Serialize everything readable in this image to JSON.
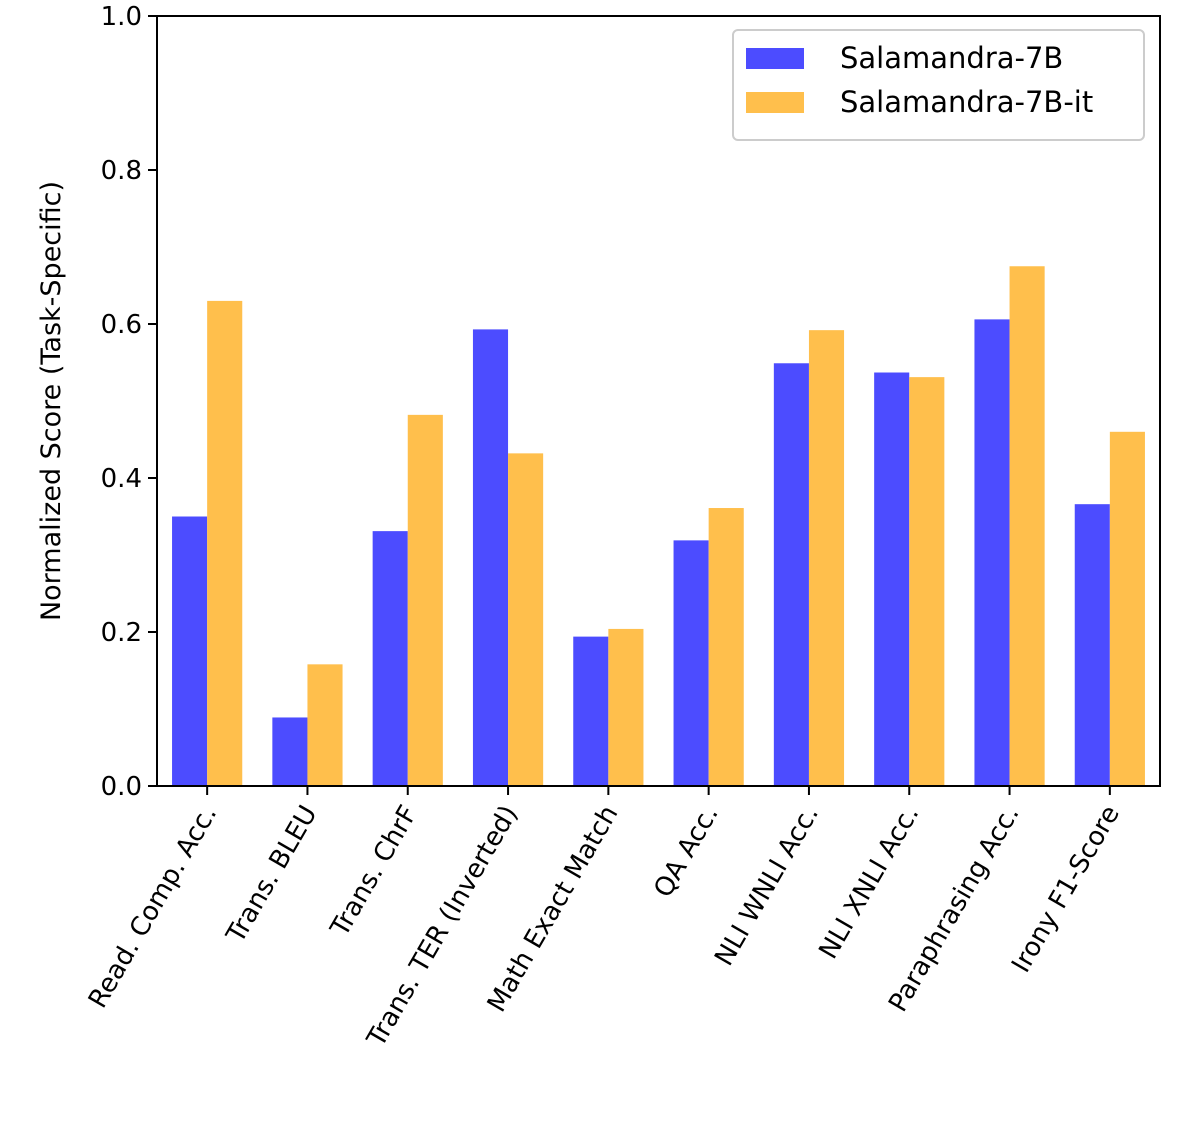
{
  "chart_data": {
    "type": "bar",
    "title": "",
    "xlabel": "",
    "ylabel": "Normalized Score (Task-Specific)",
    "ylim": [
      0.0,
      1.0
    ],
    "yticks": [
      "0.0",
      "0.2",
      "0.4",
      "0.6",
      "0.8",
      "1.0"
    ],
    "yticks_values": [
      0.0,
      0.2,
      0.4,
      0.6,
      0.8,
      1.0
    ],
    "grid": false,
    "legend_position": "top-right",
    "categories": [
      "Read. Comp. Acc.",
      "Trans. BLEU",
      "Trans. ChrF",
      "Trans. TER (Inverted)",
      "Math Exact Match",
      "QA Acc.",
      "NLI WNLI Acc.",
      "NLI XNLI Acc.",
      "Paraphrasing Acc.",
      "Irony F1-Score"
    ],
    "series": [
      {
        "name": "Salamandra-7B",
        "color": "#4c4cff",
        "values": [
          0.35,
          0.089,
          0.331,
          0.593,
          0.194,
          0.319,
          0.549,
          0.537,
          0.606,
          0.366
        ]
      },
      {
        "name": "Salamandra-7B-it",
        "color": "#ffbf4c",
        "values": [
          0.63,
          0.158,
          0.482,
          0.432,
          0.204,
          0.361,
          0.592,
          0.531,
          0.675,
          0.46
        ]
      }
    ]
  }
}
